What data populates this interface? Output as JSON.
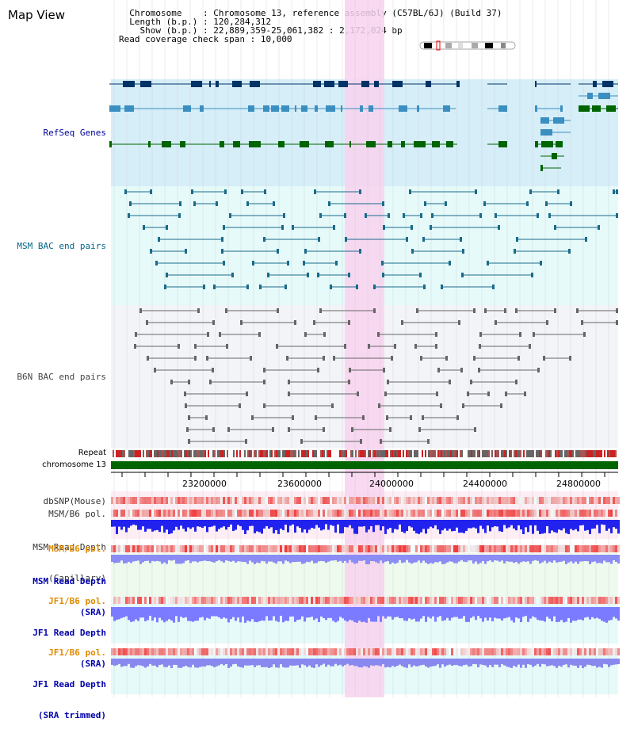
{
  "page": {
    "title": "Map View"
  },
  "info": {
    "chromosome_key": "Chromosome",
    "chromosome_val": ": Chromosome 13, reference assembly (C57BL/6J) (Build 37)",
    "length_key": "Length (b.p.)",
    "length_val": ": 120,284,312",
    "show_key": "Show (b.p.)",
    "show_val": ": 22,889,359-25,061,382 : 2,172,024 bp",
    "coverage_key": "Read coverage check span",
    "coverage_val": ": 10,000"
  },
  "tracks": {
    "refseq": "RefSeq Genes",
    "msm_bac": "MSM BAC end pairs",
    "b6n_bac": "B6N BAC end pairs",
    "repeat": "Repeat",
    "chromosome": "chromosome 13",
    "dbsnp": "dbSNP(Mouse)",
    "msm_b6_pol_1": "MSM/B6 pol.",
    "msm_depth_cap_1": "MSM Read Depth",
    "msm_depth_cap_2": "(Capillary)",
    "msm_b6_pol_2": "MSM/B6 pol.",
    "msm_depth_sra_1": "MSM Read Depth",
    "msm_depth_sra_2": "(SRA)",
    "jf1_b6_pol_1": "JF1/B6 pol.",
    "jf1_depth_sra_1": "JF1 Read Depth",
    "jf1_depth_sra_2": "(SRA)",
    "jf1_b6_pol_2": "JF1/B6 pol.",
    "jf1_depth_trim_1": "JF1 Read Depth",
    "jf1_depth_trim_2": "(SRA trimmed)"
  },
  "axis": {
    "ticks": [
      "23200000",
      "23600000",
      "24000000",
      "24400000",
      "24800000"
    ]
  },
  "colors": {
    "refseq_bg": "#d6eef8",
    "msm_bg": "#e6fafa",
    "b6n_bg": "#f3f4f8",
    "highlight": "#f8d2ee",
    "gene_dark": "#003366",
    "gene_mid": "#3b8fc0",
    "gene_green": "#006400",
    "msm_line": "#1a6b8a",
    "b6n_line": "#666666",
    "chromosome_bar": "#006400",
    "depth_blue": "#2222ee",
    "depth_light": "#7b7bff"
  }
}
